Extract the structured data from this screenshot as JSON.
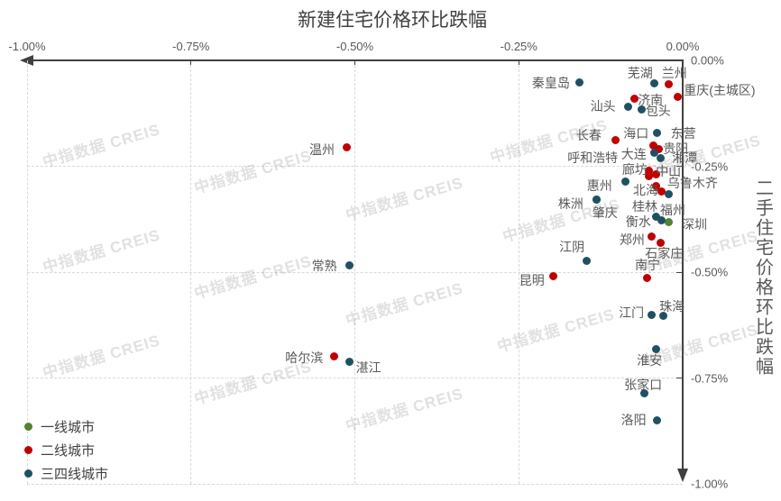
{
  "watermark_text": "中指数据 CREIS",
  "colors": {
    "tier1_green": "#538135",
    "tier2_red": "#c00000",
    "tier34_blue": "#1f5162",
    "axis": "#404040",
    "text_gray": "#595959",
    "gridline": "#d9d9d9"
  },
  "chart_data": {
    "type": "scatter",
    "title": "新建住宅价格环比跌幅",
    "legend_position": "bottom-left",
    "grid": "dashed",
    "x_axis": {
      "title": "新建住宅价格环比跌幅",
      "min": -1.0,
      "max": 0.0,
      "unit": "%",
      "ticks": [
        {
          "label": "-1.00%",
          "v": -1.0
        },
        {
          "label": "-0.75%",
          "v": -0.75
        },
        {
          "label": "-0.50%",
          "v": -0.5
        },
        {
          "label": "-0.25%",
          "v": -0.25
        },
        {
          "label": "0.00%",
          "v": 0.0
        }
      ]
    },
    "y_axis": {
      "title": "二手住宅价格环比跌幅",
      "min": -1.0,
      "max": 0.0,
      "unit": "%",
      "ticks": [
        {
          "label": "0.00%",
          "v": 0.0
        },
        {
          "label": "-0.25%",
          "v": -0.25
        },
        {
          "label": "-0.50%",
          "v": -0.5
        },
        {
          "label": "-0.75%",
          "v": -0.75
        },
        {
          "label": "-1.00%",
          "v": -1.0
        }
      ]
    },
    "series": [
      {
        "name": "一线城市",
        "color": "#538135",
        "points": [
          {
            "name": "深圳",
            "x": -0.022,
            "y": -0.381,
            "dx": 29,
            "dy": 3
          }
        ]
      },
      {
        "name": "二线城市",
        "color": "#c00000",
        "points": [
          {
            "name": "兰州",
            "x": -0.021,
            "y": -0.057,
            "dx": 6,
            "dy": -13
          },
          {
            "name": "重庆(主城区)",
            "x": -0.007,
            "y": -0.087,
            "dx": 46,
            "dy": -8
          },
          {
            "name": "济南",
            "x": -0.074,
            "y": -0.091,
            "dx": 18,
            "dy": 1
          },
          {
            "name": "长春",
            "x": -0.102,
            "y": -0.189,
            "dx": -30,
            "dy": -6
          },
          {
            "name": "海口",
            "x": -0.045,
            "y": -0.202,
            "dx": -19,
            "dy": -14
          },
          {
            "name": "贵阳",
            "x": -0.037,
            "y": -0.209,
            "dx": 19,
            "dy": 0
          },
          {
            "name": "呼和浩特",
            "x": -0.052,
            "y": -0.26,
            "dx": -62,
            "dy": -14
          },
          {
            "name": "廊坊",
            "x": -0.051,
            "y": -0.274,
            "dx": -16,
            "dy": -8
          },
          {
            "name": "中山",
            "x": -0.041,
            "y": -0.27,
            "dx": 14,
            "dy": -4
          },
          {
            "name": "乌鲁木齐",
            "x": -0.04,
            "y": -0.296,
            "dx": 40,
            "dy": -3
          },
          {
            "name": "北海",
            "x": -0.033,
            "y": -0.309,
            "dx": -17,
            "dy": -1
          },
          {
            "name": "郑州",
            "x": -0.047,
            "y": -0.415,
            "dx": -22,
            "dy": 4
          },
          {
            "name": "石家庄",
            "x": -0.034,
            "y": -0.43,
            "dx": 4,
            "dy": 12
          },
          {
            "name": "南宁",
            "x": -0.055,
            "y": -0.513,
            "dx": 1,
            "dy": -14
          },
          {
            "name": "昆明",
            "x": -0.197,
            "y": -0.509,
            "dx": -24,
            "dy": 5
          },
          {
            "name": "温州",
            "x": -0.513,
            "y": -0.206,
            "dx": -27,
            "dy": 2
          },
          {
            "name": "哈尔滨",
            "x": -0.532,
            "y": -0.698,
            "dx": -33,
            "dy": 2
          }
        ]
      },
      {
        "name": "三四线城市",
        "color": "#1f5162",
        "points": [
          {
            "name": "秦皇岛",
            "x": -0.157,
            "y": -0.053,
            "dx": -32,
            "dy": 0
          },
          {
            "name": "芜湖",
            "x": -0.043,
            "y": -0.055,
            "dx": -16,
            "dy": -12
          },
          {
            "name": "汕头",
            "x": -0.083,
            "y": -0.109,
            "dx": -28,
            "dy": 0
          },
          {
            "name": "包头",
            "x": -0.062,
            "y": -0.117,
            "dx": 18,
            "dy": 1
          },
          {
            "name": "东营",
            "x": -0.039,
            "y": -0.172,
            "dx": 29,
            "dy": 0
          },
          {
            "name": "大连",
            "x": -0.043,
            "y": -0.219,
            "dx": -23,
            "dy": 1
          },
          {
            "name": "湘潭",
            "x": -0.034,
            "y": -0.23,
            "dx": 27,
            "dy": 0
          },
          {
            "name": "惠州",
            "x": -0.087,
            "y": -0.287,
            "dx": -29,
            "dy": 4
          },
          {
            "name": "株洲",
            "x": -0.131,
            "y": -0.328,
            "dx": -29,
            "dy": 5
          },
          {
            "name": "肇庆",
            "x": -0.131,
            "y": -0.328,
            "dx": 9,
            "dy": 15
          },
          {
            "name": "桂林",
            "x": -0.022,
            "y": -0.317,
            "dx": -26,
            "dy": 13
          },
          {
            "name": "衡水",
            "x": -0.04,
            "y": -0.37,
            "dx": -20,
            "dy": 5
          },
          {
            "name": "福州",
            "x": -0.033,
            "y": -0.377,
            "dx": 13,
            "dy": -11
          },
          {
            "name": "江阴",
            "x": -0.147,
            "y": -0.474,
            "dx": -16,
            "dy": -16
          },
          {
            "name": "常熟",
            "x": -0.508,
            "y": -0.483,
            "dx": -28,
            "dy": 1
          },
          {
            "name": "江门",
            "x": -0.048,
            "y": -0.602,
            "dx": -22,
            "dy": -3
          },
          {
            "name": "珠海",
            "x": -0.03,
            "y": -0.604,
            "dx": 10,
            "dy": -11
          },
          {
            "name": "淮安",
            "x": -0.041,
            "y": -0.681,
            "dx": -7,
            "dy": 13
          },
          {
            "name": "张家口",
            "x": -0.059,
            "y": -0.787,
            "dx": -1,
            "dy": -10
          },
          {
            "name": "洛阳",
            "x": -0.039,
            "y": -0.849,
            "dx": -26,
            "dy": 0
          },
          {
            "name": "湛江",
            "x": -0.508,
            "y": -0.711,
            "dx": 21,
            "dy": 7
          }
        ]
      }
    ]
  }
}
